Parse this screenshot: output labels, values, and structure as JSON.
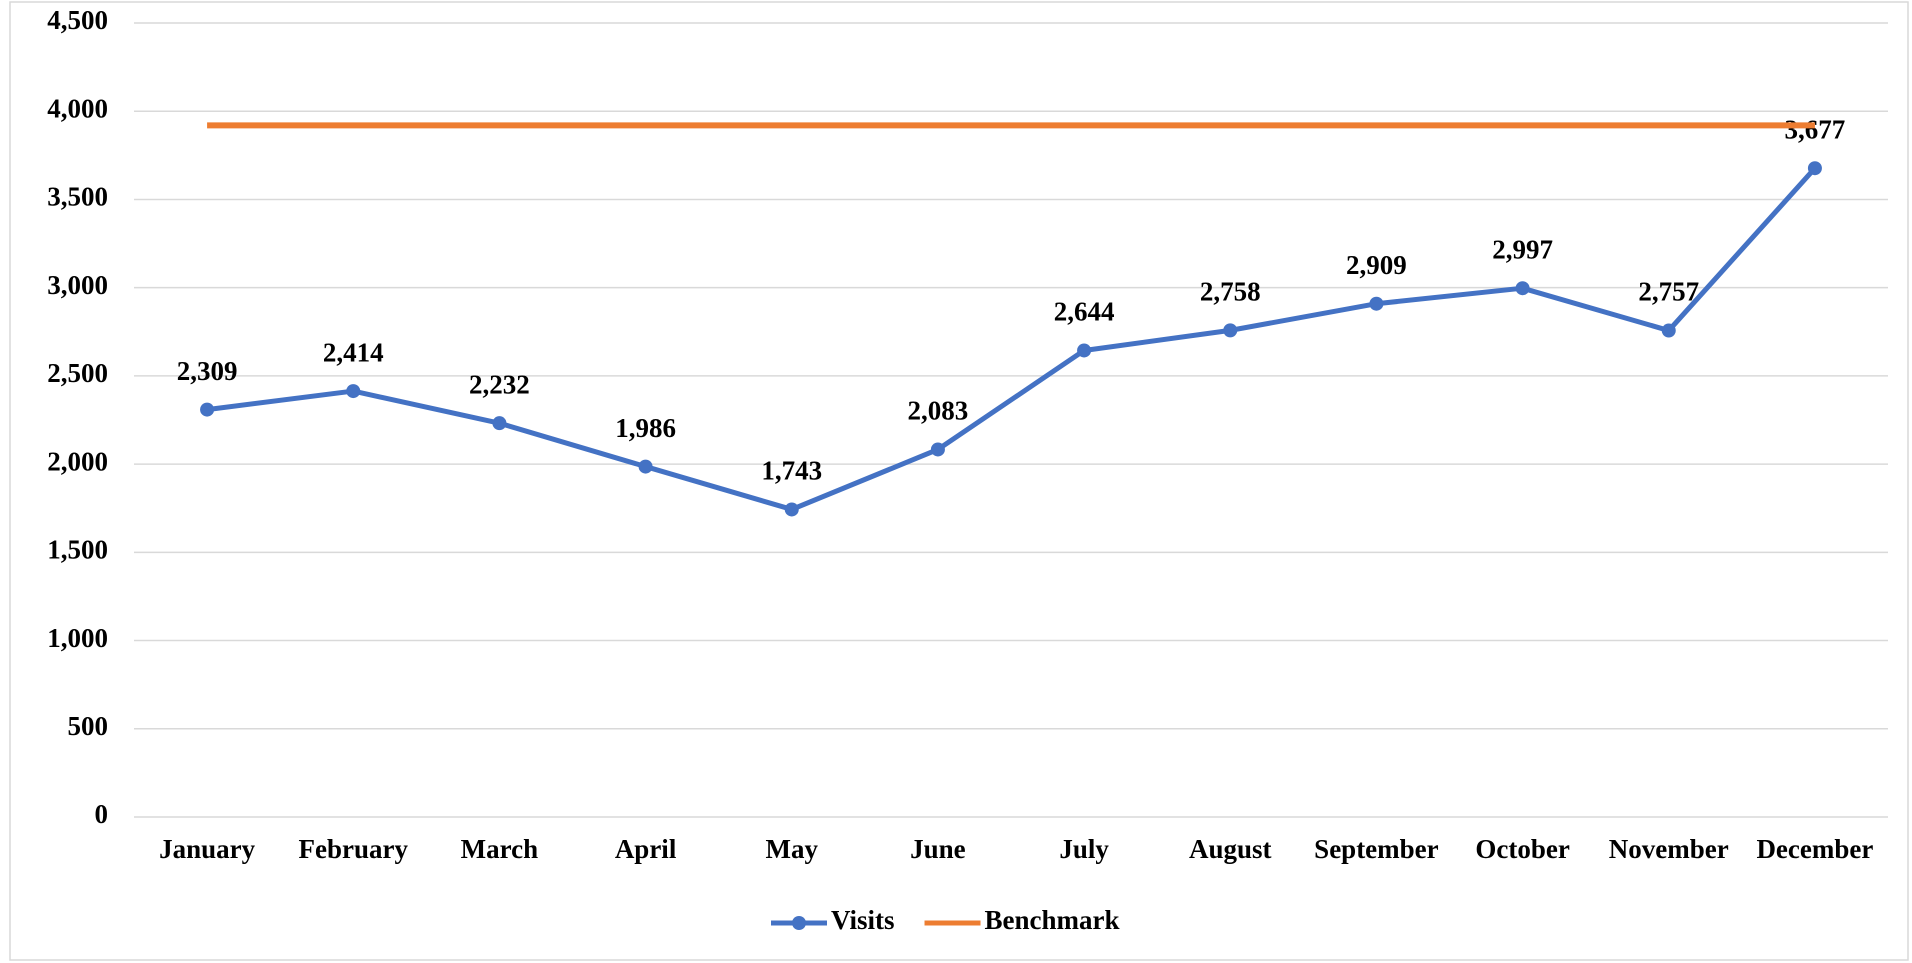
{
  "chart_data": {
    "type": "line",
    "categories": [
      "January",
      "February",
      "March",
      "April",
      "May",
      "June",
      "July",
      "August",
      "September",
      "October",
      "November",
      "December"
    ],
    "series": [
      {
        "name": "Visits",
        "color": "#4472c4",
        "marker": true,
        "values": [
          2309,
          2414,
          2232,
          1986,
          1743,
          2083,
          2644,
          2758,
          2909,
          2997,
          2757,
          3677
        ],
        "value_labels": [
          "2,309",
          "2,414",
          "2,232",
          "1,986",
          "1,743",
          "2,083",
          "2,644",
          "2,758",
          "2,909",
          "2,997",
          "2,757",
          "3,677"
        ]
      },
      {
        "name": "Benchmark",
        "color": "#ed7d31",
        "marker": false,
        "values": [
          3920,
          3920,
          3920,
          3920,
          3920,
          3920,
          3920,
          3920,
          3920,
          3920,
          3920,
          3920
        ]
      }
    ],
    "ylim": [
      0,
      4500
    ],
    "yticks": [
      {
        "value": 0,
        "label": "0"
      },
      {
        "value": 500,
        "label": "500"
      },
      {
        "value": 1000,
        "label": "1,000"
      },
      {
        "value": 1500,
        "label": "1,500"
      },
      {
        "value": 2000,
        "label": "2,000"
      },
      {
        "value": 2500,
        "label": "2,500"
      },
      {
        "value": 3000,
        "label": "3,000"
      },
      {
        "value": 3500,
        "label": "3,500"
      },
      {
        "value": 4000,
        "label": "4,000"
      },
      {
        "value": 4500,
        "label": "4,500"
      }
    ],
    "grid": true,
    "legend": "bottom"
  }
}
